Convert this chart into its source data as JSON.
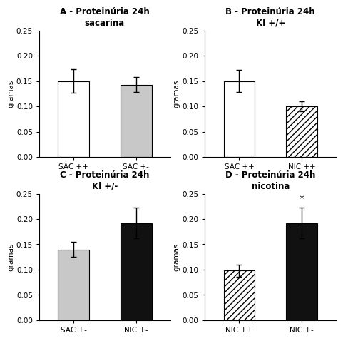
{
  "subplots": [
    {
      "title": "A - Proteinúria 24h\nsacarina",
      "categories": [
        "SAC ++",
        "SAC +-"
      ],
      "values": [
        0.15,
        0.143
      ],
      "errors": [
        0.023,
        0.015
      ],
      "colors": [
        "white",
        "#c8c8c8"
      ],
      "patterns": [
        null,
        null
      ],
      "asterisk": null,
      "ylabel": "gramas"
    },
    {
      "title": "B - Proteinúria 24h\nKl +/+",
      "categories": [
        "SAC ++",
        "NIC ++"
      ],
      "values": [
        0.15,
        0.1
      ],
      "errors": [
        0.022,
        0.01
      ],
      "colors": [
        "white",
        "white"
      ],
      "patterns": [
        null,
        "////"
      ],
      "asterisk": null,
      "ylabel": "gramas"
    },
    {
      "title": "C - Proteinúria 24h\nKl +/-",
      "categories": [
        "SAC +-",
        "NIC +-"
      ],
      "values": [
        0.14,
        0.192
      ],
      "errors": [
        0.015,
        0.03
      ],
      "colors": [
        "#c8c8c8",
        "#111111"
      ],
      "patterns": [
        null,
        null
      ],
      "asterisk": null,
      "ylabel": "gramas"
    },
    {
      "title": "D - Proteinúria 24h\nnicotina",
      "categories": [
        "NIC ++",
        "NIC +-"
      ],
      "values": [
        0.098,
        0.192
      ],
      "errors": [
        0.012,
        0.03
      ],
      "colors": [
        "white",
        "#111111"
      ],
      "patterns": [
        "////",
        null
      ],
      "asterisk": "NIC +-",
      "ylabel": "gramas"
    }
  ],
  "ylim": [
    0,
    0.25
  ],
  "yticks": [
    0.0,
    0.05,
    0.1,
    0.15,
    0.2,
    0.25
  ],
  "background_color": "#ffffff",
  "bar_edgecolor": "#000000",
  "bar_width": 0.5,
  "errorbar_capsize": 3,
  "errorbar_linewidth": 1.0,
  "title_fontsize": 8.5,
  "label_fontsize": 7.5,
  "tick_fontsize": 7.5,
  "ylabel_fontsize": 7.5
}
